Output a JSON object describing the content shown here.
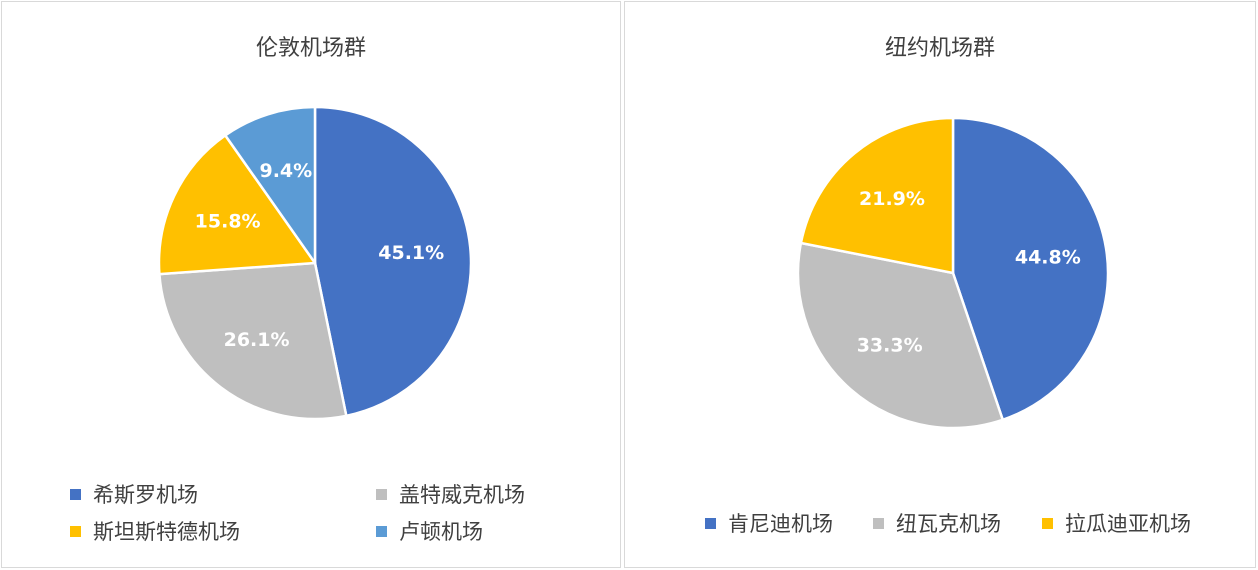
{
  "chart_data": [
    {
      "type": "pie",
      "title": "伦敦机场群",
      "legend_position": "bottom",
      "slices": [
        {
          "label": "希斯罗机场",
          "value": 45.1,
          "display": "45.1%",
          "color": "#4472C4"
        },
        {
          "label": "盖特威克机场",
          "value": 26.1,
          "display": "26.1%",
          "color": "#BFBFBF"
        },
        {
          "label": "斯坦斯特德机场",
          "value": 15.8,
          "display": "15.8%",
          "color": "#FFC000"
        },
        {
          "label": "卢顿机场",
          "value": 9.4,
          "display": "9.4%",
          "color": "#5B9BD5"
        }
      ]
    },
    {
      "type": "pie",
      "title": "纽约机场群",
      "legend_position": "bottom",
      "slices": [
        {
          "label": "肯尼迪机场",
          "value": 44.8,
          "display": "44.8%",
          "color": "#4472C4"
        },
        {
          "label": "纽瓦克机场",
          "value": 33.3,
          "display": "33.3%",
          "color": "#BFBFBF"
        },
        {
          "label": "拉瓜迪亚机场",
          "value": 21.9,
          "display": "21.9%",
          "color": "#FFC000"
        }
      ]
    }
  ]
}
